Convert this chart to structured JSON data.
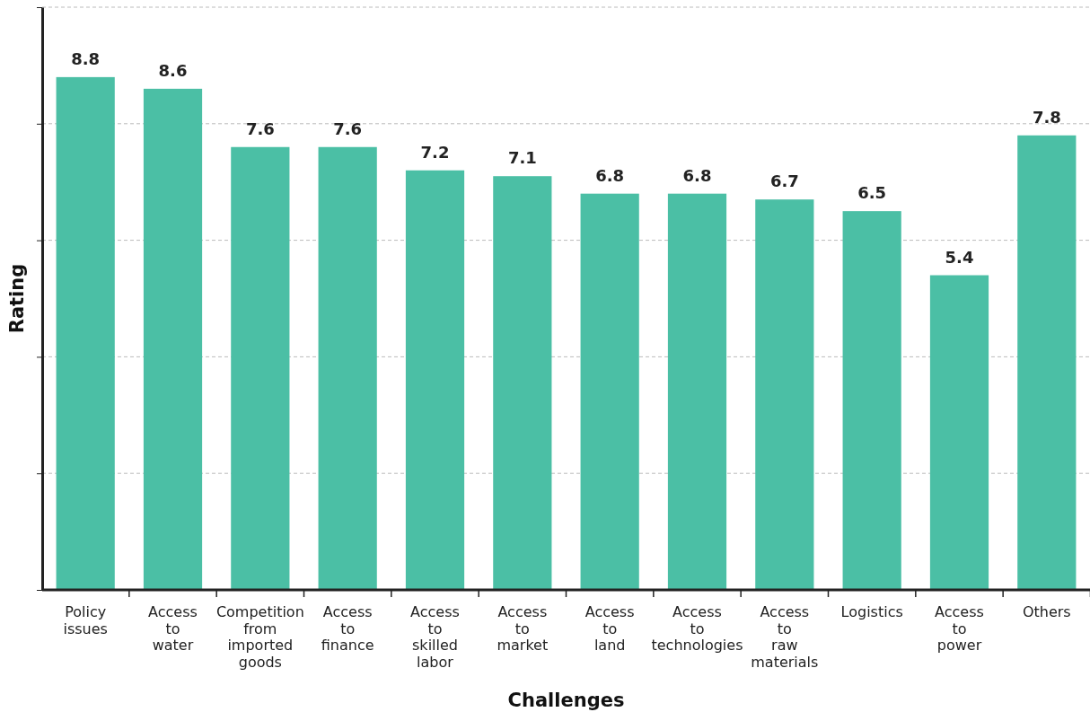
{
  "chart_data": {
    "type": "bar",
    "xlabel": "Challenges",
    "ylabel": "Rating",
    "categories": [
      "Policy issues",
      "Access to water",
      "Competition from imported goods",
      "Access to finance",
      "Access to skilled labor",
      "Access to market",
      "Access to land",
      "Access to technologies",
      "Access to raw materials",
      "Logistics",
      "Access to power",
      "Others"
    ],
    "values": [
      8.8,
      8.6,
      7.6,
      7.6,
      7.2,
      7.1,
      6.8,
      6.8,
      6.7,
      6.5,
      5.4,
      7.8
    ],
    "color": "#4bbfa5",
    "ylim": [
      0,
      10
    ],
    "yticks": [
      {
        "value": 0,
        "label": null
      },
      {
        "value": 2,
        "label": null
      },
      {
        "value": 4,
        "label": null
      },
      {
        "value": 6,
        "label": null
      },
      {
        "value": 8,
        "label": null
      },
      {
        "value": 10,
        "label": null
      }
    ],
    "grid": "y",
    "tick_labels": "x",
    "data_labels": true
  }
}
